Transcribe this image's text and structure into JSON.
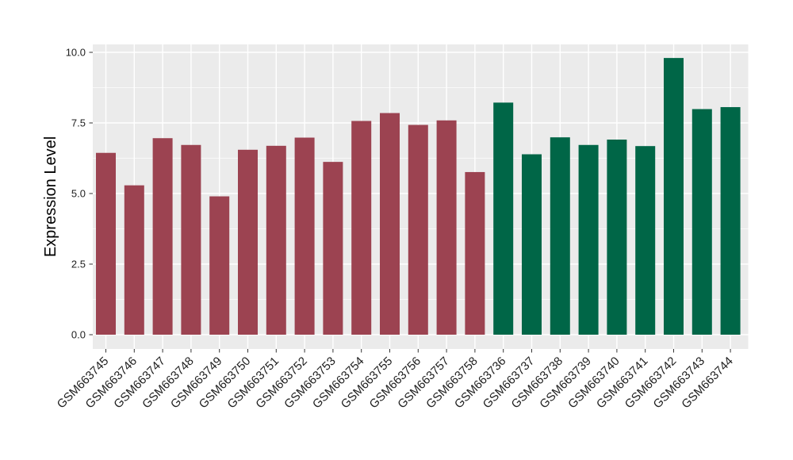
{
  "figure": {
    "background_color": "#FFFFFF",
    "panel_background_color": "#EBEBEB",
    "grid_color": "#FFFFFF",
    "tick_mark_color": "#333333",
    "legend": "none",
    "title": ""
  },
  "chart_data": {
    "type": "bar",
    "title": "",
    "xlabel": "",
    "ylabel": "Expression Level",
    "ylim": [
      0,
      10.3
    ],
    "grid": "on",
    "legend_position": "none",
    "yticks": [
      0,
      2.5,
      5,
      7.5,
      10
    ],
    "ytick_labels": [
      "0.0",
      "2.5",
      "5.0",
      "7.5",
      "10.0"
    ],
    "minor_yticks": [
      1.25,
      3.75,
      6.25,
      8.75
    ],
    "categories": [
      "GSM663745",
      "GSM663746",
      "GSM663747",
      "GSM663748",
      "GSM663749",
      "GSM663750",
      "GSM663751",
      "GSM663752",
      "GSM663753",
      "GSM663754",
      "GSM663755",
      "GSM663756",
      "GSM663757",
      "GSM663758",
      "GSM663736",
      "GSM663737",
      "GSM663738",
      "GSM663739",
      "GSM663740",
      "GSM663741",
      "GSM663742",
      "GSM663743",
      "GSM663744"
    ],
    "values": [
      6.44,
      5.29,
      6.96,
      6.72,
      4.9,
      6.55,
      6.69,
      6.98,
      6.12,
      7.57,
      7.85,
      7.43,
      7.59,
      5.76,
      8.22,
      6.39,
      6.99,
      6.72,
      6.91,
      6.68,
      9.8,
      7.99,
      8.06
    ],
    "bar_group": [
      1,
      1,
      1,
      1,
      1,
      1,
      1,
      1,
      1,
      1,
      1,
      1,
      1,
      1,
      2,
      2,
      2,
      2,
      2,
      2,
      2,
      2,
      2
    ],
    "group_colors": [
      "#9C4351",
      "#006647"
    ]
  }
}
